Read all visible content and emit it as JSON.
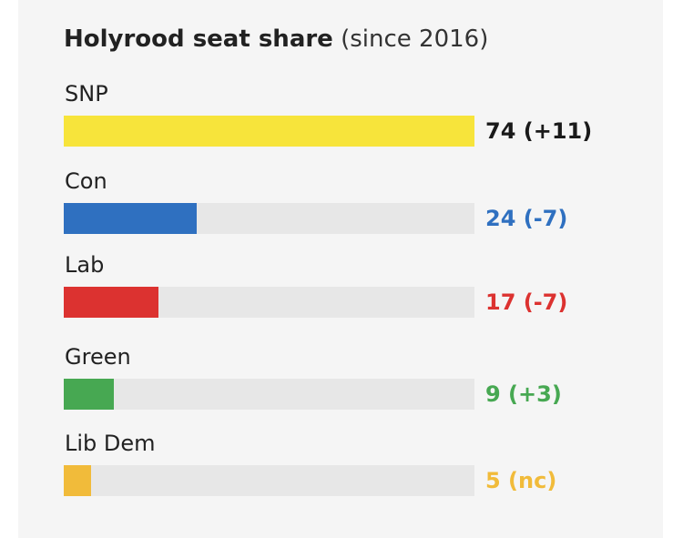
{
  "chart_data": {
    "type": "bar",
    "orientation": "horizontal",
    "title": "Holyrood seat share",
    "subtitle": "(since 2016)",
    "categories": [
      "SNP",
      "Con",
      "Lab",
      "Green",
      "Lib Dem"
    ],
    "values": [
      74,
      24,
      17,
      9,
      5
    ],
    "value_labels": [
      "74 (+11)",
      "24 (-7)",
      "17 (-7)",
      "9 (+3)",
      "5 (nc)"
    ],
    "colors": [
      "#f7e43b",
      "#2f70c0",
      "#dc3230",
      "#47a852",
      "#f1bb3a"
    ],
    "label_colors": [
      "#1a1a1a",
      "#2f70c0",
      "#dc3230",
      "#47a852",
      "#f1bb3a"
    ],
    "xlim": [
      0,
      74
    ],
    "grid": false
  }
}
